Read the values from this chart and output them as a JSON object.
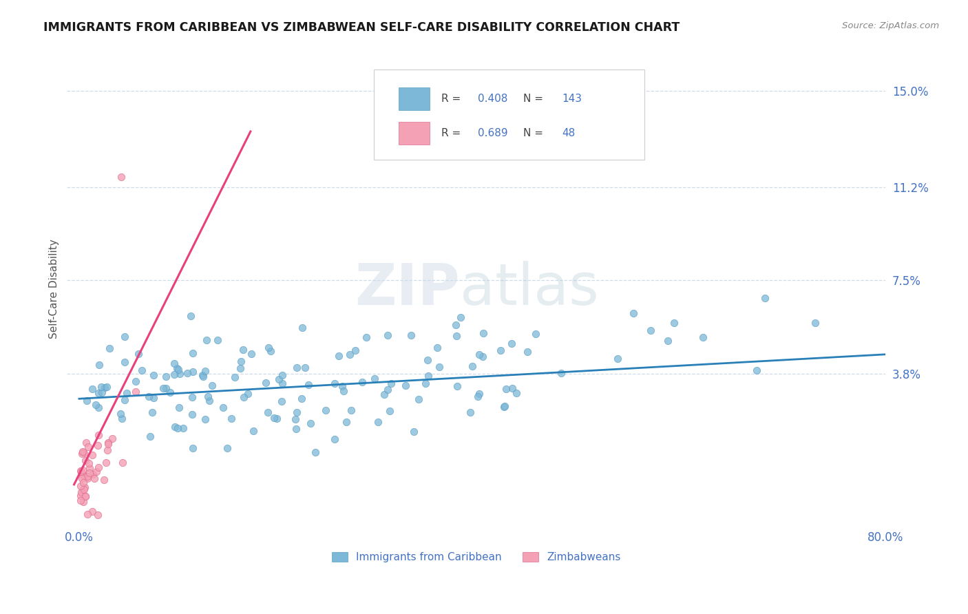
{
  "title": "IMMIGRANTS FROM CARIBBEAN VS ZIMBABWEAN SELF-CARE DISABILITY CORRELATION CHART",
  "source": "Source: ZipAtlas.com",
  "ylabel": "Self-Care Disability",
  "xlim": [
    -0.012,
    0.8
  ],
  "ylim": [
    -0.022,
    0.165
  ],
  "ytick_positions": [
    0.038,
    0.075,
    0.112,
    0.15
  ],
  "ytick_labels": [
    "3.8%",
    "7.5%",
    "11.2%",
    "15.0%"
  ],
  "xtick_positions": [
    0.0,
    0.8
  ],
  "xtick_labels": [
    "0.0%",
    "80.0%"
  ],
  "caribbean_R": 0.408,
  "caribbean_N": 143,
  "zimbabwean_R": 0.689,
  "zimbabwean_N": 48,
  "caribbean_color": "#7db8d8",
  "caribbean_edge_color": "#5a9ec4",
  "zimbabwean_color": "#f4a0b5",
  "zimbabwean_edge_color": "#e07090",
  "caribbean_line_color": "#2980b9",
  "zimbabwean_line_color": "#e8407a",
  "zimbabwean_trendline_color": "#cccccc",
  "grid_color": "#c8d8e8",
  "background_color": "#ffffff",
  "tick_color": "#4472c4",
  "legend_label_caribbean": "Immigrants from Caribbean",
  "legend_label_zimbabwean": "Zimbabweans"
}
